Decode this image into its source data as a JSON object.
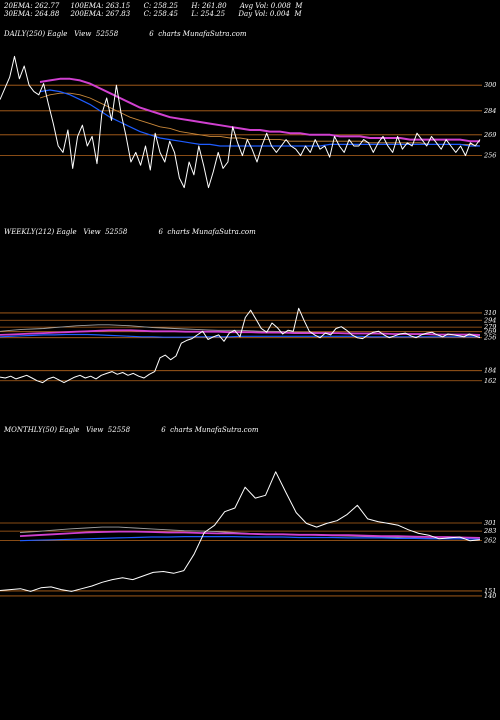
{
  "header": {
    "line1": "20EMA: 262.77     100EMA: 263.15      C: 258.25      H: 261.80      Avg Vol: 0.008  M",
    "line2": "30EMA: 264.88     200EMA: 267.83      C: 258.45      L: 254.25      Day Vol: 0.004  M"
  },
  "panels": {
    "daily": {
      "title": "DAILY(250) Eagle   View  52558              6  charts MunafaSutra.com"
    },
    "weekly": {
      "title": "WEEKLY(212) Eagle   View  52558              6  charts MunafaSutra.com"
    },
    "monthly": {
      "title": "MONTHLY(50) Eagle   View  52558              6  charts MunafaSutra.com"
    }
  },
  "chart_data": [
    {
      "type": "line",
      "title": "DAILY(250) Eagle View 52558",
      "ylim": [
        222,
        322
      ],
      "levels": [
        300,
        284,
        269,
        256
      ],
      "level_labels": [
        "300",
        "284",
        "269",
        "256"
      ],
      "price": [
        291,
        298,
        305,
        318,
        304,
        312,
        300,
        296,
        294,
        301,
        288,
        276,
        262,
        258,
        272,
        248,
        268,
        275,
        262,
        268,
        251,
        282,
        292,
        278,
        300,
        282,
        268,
        252,
        258,
        250,
        262,
        247,
        270,
        258,
        252,
        265,
        258,
        242,
        236,
        252,
        244,
        262,
        250,
        236,
        246,
        258,
        248,
        252,
        274,
        264,
        256,
        266,
        260,
        252,
        262,
        270,
        262,
        258,
        262,
        266,
        262,
        260,
        256,
        262,
        258,
        266,
        260,
        262,
        255,
        268,
        262,
        258,
        266,
        262,
        262,
        266,
        264,
        258,
        264,
        268,
        262,
        258,
        268,
        260,
        264,
        262,
        270,
        266,
        262,
        268,
        264,
        260,
        266,
        262,
        258,
        262,
        256,
        264,
        262,
        266
      ],
      "ema_short": [
        296,
        297,
        296,
        294,
        291,
        288,
        284,
        280,
        277,
        274,
        271,
        269,
        267,
        266,
        265,
        264,
        263,
        263,
        262,
        262,
        262,
        262,
        262,
        262,
        262,
        262,
        262,
        262,
        262,
        263,
        263,
        263,
        263,
        263,
        263,
        263,
        263,
        263,
        263,
        263,
        263,
        263,
        263,
        262,
        262
      ],
      "ema_long": [
        302,
        303,
        304,
        304,
        303,
        301,
        298,
        295,
        292,
        289,
        286,
        284,
        282,
        280,
        279,
        278,
        277,
        276,
        275,
        274,
        273,
        272,
        272,
        271,
        271,
        270,
        270,
        269,
        269,
        269,
        268,
        268,
        268,
        267,
        267,
        267,
        267,
        266,
        266,
        266,
        266,
        266,
        266,
        265,
        265
      ],
      "avg_line": [
        292,
        294,
        295,
        295,
        294,
        292,
        289,
        286,
        283,
        280,
        278,
        276,
        274,
        273,
        271,
        270,
        269,
        268,
        268,
        267,
        267,
        266,
        266,
        266,
        266,
        265,
        265,
        265,
        265,
        265,
        265,
        265,
        265,
        264,
        264,
        264,
        264,
        264,
        264,
        263,
        263,
        263,
        263,
        263,
        262
      ]
    },
    {
      "type": "line",
      "title": "WEEKLY(212) Eagle View 52558",
      "ylim": [
        120,
        360
      ],
      "levels": [
        310,
        294,
        279,
        269,
        256,
        184,
        162
      ],
      "level_labels": [
        "310",
        "294",
        "279",
        "269",
        "256",
        "184",
        "162"
      ],
      "price": [
        170,
        168,
        172,
        166,
        170,
        174,
        168,
        162,
        158,
        166,
        170,
        164,
        158,
        164,
        170,
        174,
        168,
        172,
        166,
        174,
        178,
        182,
        176,
        180,
        174,
        178,
        172,
        168,
        176,
        182,
        212,
        218,
        208,
        216,
        244,
        250,
        254,
        262,
        270,
        252,
        258,
        262,
        248,
        266,
        272,
        258,
        300,
        316,
        296,
        276,
        268,
        288,
        278,
        264,
        272,
        270,
        320,
        294,
        270,
        262,
        256,
        266,
        262,
        276,
        280,
        272,
        262,
        256,
        254,
        262,
        268,
        270,
        262,
        256,
        260,
        264,
        266,
        260,
        256,
        262,
        266,
        268,
        262,
        258,
        264,
        262,
        260,
        258,
        264,
        260,
        256
      ],
      "ema_a": [
        270,
        272,
        274,
        275,
        276,
        278,
        280,
        282,
        283,
        284,
        284,
        283,
        282,
        280,
        278,
        277,
        276,
        275,
        274,
        273,
        272,
        272,
        272,
        271,
        270,
        270,
        269,
        268,
        268,
        267,
        267,
        266,
        266,
        265,
        265,
        264,
        264,
        264,
        263,
        263,
        262,
        262,
        262,
        261,
        261
      ],
      "ema_b": [
        262,
        263,
        264,
        265,
        266,
        267,
        268,
        269,
        270,
        271,
        272,
        272,
        272,
        271,
        270,
        270,
        270,
        269,
        269,
        269,
        269,
        268,
        268,
        268,
        267,
        267,
        267,
        266,
        266,
        266,
        266,
        266,
        265,
        265,
        265,
        265,
        264,
        264,
        264,
        264,
        263,
        263,
        263,
        263,
        262
      ],
      "ema_c": [
        258,
        259,
        260,
        261,
        262,
        262,
        263,
        263,
        263,
        262,
        261,
        260,
        259,
        258,
        258,
        257,
        257,
        257,
        258,
        258,
        258,
        258,
        259,
        259,
        259,
        259,
        259,
        259,
        259,
        259,
        259,
        259,
        259,
        259,
        258,
        258,
        258,
        258,
        258,
        258,
        258,
        258,
        258,
        258,
        258
      ]
    },
    {
      "type": "line",
      "title": "MONTHLY(50) Eagle View 52558",
      "ylim": [
        120,
        440
      ],
      "levels": [
        301,
        283,
        262,
        151,
        140
      ],
      "level_labels": [
        "301",
        "283",
        "262",
        "151",
        "140"
      ],
      "price": [
        152,
        154,
        156,
        150,
        158,
        160,
        154,
        150,
        156,
        162,
        170,
        176,
        180,
        176,
        184,
        192,
        194,
        190,
        196,
        232,
        280,
        296,
        326,
        334,
        380,
        356,
        362,
        414,
        368,
        324,
        300,
        292,
        300,
        306,
        320,
        340,
        310,
        304,
        300,
        296,
        286,
        278,
        274,
        266,
        268,
        270,
        262,
        264
      ],
      "ema_a": [
        280,
        282,
        285,
        288,
        290,
        292,
        292,
        290,
        288,
        286,
        284,
        283,
        282,
        280,
        278,
        277,
        276,
        275,
        274,
        273,
        272,
        271,
        270,
        269,
        268,
        267,
        266,
        266,
        265
      ],
      "ema_b": [
        272,
        274,
        276,
        278,
        280,
        281,
        282,
        282,
        281,
        280,
        280,
        279,
        278,
        278,
        277,
        276,
        276,
        275,
        275,
        274,
        274,
        273,
        272,
        272,
        271,
        270,
        270,
        269,
        268
      ],
      "ema_c": [
        262,
        263,
        264,
        265,
        266,
        267,
        268,
        269,
        270,
        270,
        271,
        271,
        271,
        271,
        270,
        270,
        270,
        269,
        269,
        269,
        268,
        268,
        268,
        267,
        267,
        266,
        266,
        266,
        265
      ]
    }
  ],
  "colors": {
    "background": "#000000",
    "level_line": "#b5651d",
    "price": "#ffffff",
    "ema_blue": "#1e5cff",
    "ema_magenta": "#d040d0",
    "ema_grey": "#a0a0a0",
    "ema_brown": "#c8873a"
  }
}
